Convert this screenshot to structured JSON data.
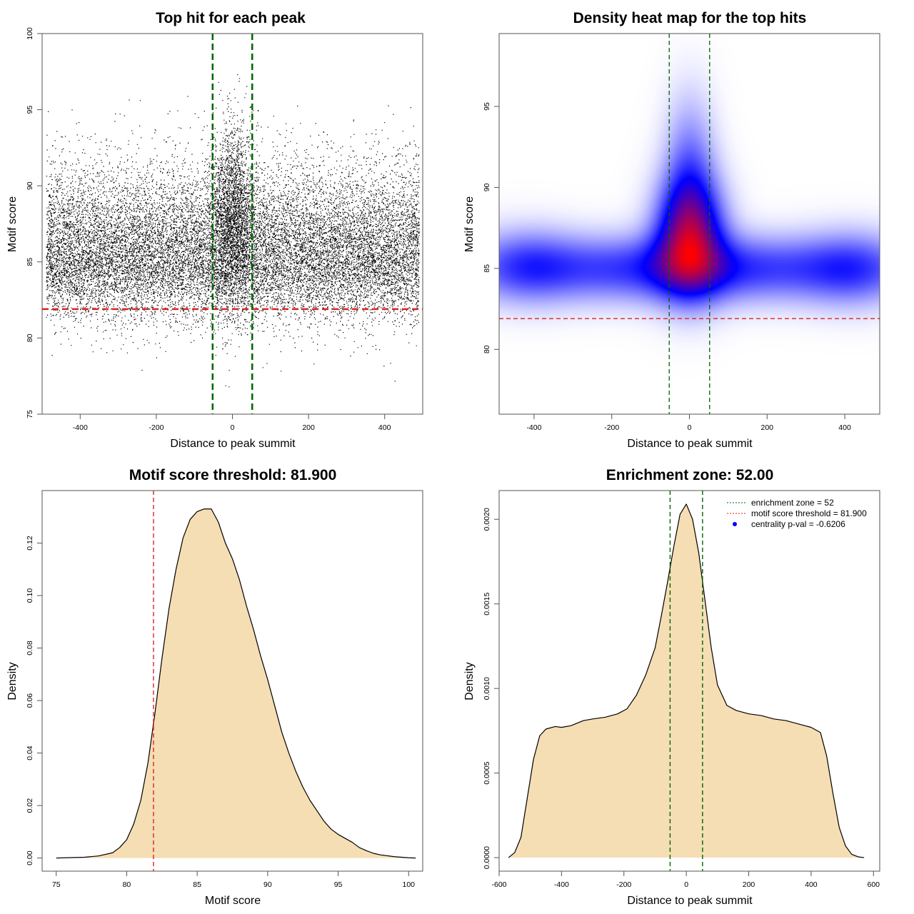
{
  "chart_data": [
    {
      "id": "scatter",
      "type": "scatter",
      "title": "Top hit for each peak",
      "xlabel": "Distance to peak summit",
      "ylabel": "Motif score",
      "xlim": [
        -500,
        500
      ],
      "ylim": [
        75,
        100
      ],
      "xticks": [
        -400,
        -200,
        0,
        200,
        400
      ],
      "yticks": [
        75,
        80,
        85,
        90,
        95,
        100
      ],
      "grid": false,
      "point_color": "#000000",
      "n_points_approx": 20000,
      "point_distribution": {
        "x_range": [
          -490,
          490
        ],
        "score_mode": 85,
        "central_score_mode": 88,
        "central_half_width": 52,
        "max_score": 99.5,
        "min_score": 75.9
      },
      "hlines": [
        {
          "y": 81.9,
          "color": "#dd2222",
          "style": "dashed"
        }
      ],
      "vlines": [
        {
          "x": -52,
          "color": "#006400",
          "style": "dashed"
        },
        {
          "x": 52,
          "color": "#006400",
          "style": "dashed"
        }
      ]
    },
    {
      "id": "heatmap",
      "type": "heatmap",
      "title": "Density heat map for the top hits",
      "xlabel": "Distance to peak summit",
      "ylabel": "Motif score",
      "xlim": [
        -490,
        490
      ],
      "ylim": [
        76,
        99.5
      ],
      "xticks": [
        -400,
        -200,
        0,
        200,
        400
      ],
      "yticks": [
        80,
        85,
        90,
        95
      ],
      "grid": false,
      "color_scale": [
        "#ffffff",
        "#0000ff",
        "#ff0000"
      ],
      "density_components": [
        {
          "x": 0,
          "y": 85.0,
          "sx": 360,
          "sy": 1.4,
          "weight": 0.6
        },
        {
          "x": -420,
          "y": 85.2,
          "sx": 90,
          "sy": 1.6,
          "weight": 0.3
        },
        {
          "x": 420,
          "y": 85.0,
          "sx": 90,
          "sy": 1.6,
          "weight": 0.3
        },
        {
          "x": 0,
          "y": 87.0,
          "sx": 60,
          "sy": 2.4,
          "weight": 1.0
        },
        {
          "x": 0,
          "y": 91.0,
          "sx": 45,
          "sy": 3.2,
          "weight": 0.35
        }
      ],
      "hlines": [
        {
          "y": 81.9,
          "color": "#dd2222",
          "style": "dashed"
        }
      ],
      "vlines": [
        {
          "x": -52,
          "color": "#006400",
          "style": "dashed"
        },
        {
          "x": 52,
          "color": "#006400",
          "style": "dashed"
        }
      ]
    },
    {
      "id": "score-density",
      "type": "area",
      "title": "Motif score threshold: 81.900",
      "xlabel": "Motif score",
      "ylabel": "Density",
      "xlim": [
        74,
        101
      ],
      "ylim": [
        -0.005,
        0.14
      ],
      "xticks": [
        75,
        80,
        85,
        90,
        95,
        100
      ],
      "yticks": [
        0.0,
        0.02,
        0.04,
        0.06,
        0.08,
        0.1,
        0.12
      ],
      "ytick_labels": [
        "0.00",
        "0.02",
        "0.04",
        "0.06",
        "0.08",
        "0.10",
        "0.12"
      ],
      "grid": false,
      "fill_color": "#f5deb3",
      "x": [
        75,
        77,
        78,
        79,
        79.5,
        80,
        80.5,
        81,
        81.5,
        82,
        82.5,
        83,
        83.5,
        84,
        84.5,
        85,
        85.5,
        86,
        86.5,
        87,
        87.5,
        88,
        88.5,
        89,
        89.5,
        90,
        90.5,
        91,
        91.5,
        92,
        92.5,
        93,
        93.5,
        94,
        94.5,
        95,
        95.5,
        96,
        96.5,
        97,
        97.5,
        98,
        99,
        100,
        100.5
      ],
      "y": [
        0.0,
        0.0003,
        0.0008,
        0.002,
        0.004,
        0.007,
        0.013,
        0.022,
        0.036,
        0.055,
        0.076,
        0.095,
        0.11,
        0.122,
        0.129,
        0.132,
        0.133,
        0.133,
        0.128,
        0.12,
        0.114,
        0.106,
        0.096,
        0.087,
        0.077,
        0.068,
        0.058,
        0.048,
        0.04,
        0.033,
        0.027,
        0.022,
        0.018,
        0.014,
        0.011,
        0.009,
        0.0075,
        0.006,
        0.004,
        0.0028,
        0.0018,
        0.0012,
        0.0005,
        0.0001,
        0.0
      ],
      "vlines": [
        {
          "x": 81.9,
          "color": "#dd2222",
          "style": "dashed"
        }
      ]
    },
    {
      "id": "distance-density",
      "type": "area",
      "title": "Enrichment zone: 52.00",
      "xlabel": "Distance to peak summit",
      "ylabel": "Density",
      "xlim": [
        -600,
        620
      ],
      "ylim": [
        -8e-05,
        0.00217
      ],
      "xticks": [
        -600,
        -400,
        -200,
        0,
        200,
        400,
        600
      ],
      "yticks": [
        0.0,
        0.0005,
        0.001,
        0.0015,
        0.002
      ],
      "ytick_labels": [
        "0.0000",
        "0.0005",
        "0.0010",
        "0.0015",
        "0.0020"
      ],
      "grid": false,
      "fill_color": "#f5deb3",
      "x": [
        -570,
        -550,
        -530,
        -510,
        -490,
        -470,
        -450,
        -420,
        -400,
        -370,
        -330,
        -300,
        -260,
        -220,
        -190,
        -160,
        -130,
        -100,
        -80,
        -60,
        -40,
        -20,
        0,
        20,
        40,
        60,
        80,
        100,
        130,
        160,
        200,
        240,
        280,
        320,
        360,
        400,
        430,
        450,
        470,
        490,
        510,
        530,
        550,
        570
      ],
      "y": [
        0.0,
        3e-05,
        0.00012,
        0.00035,
        0.00058,
        0.00072,
        0.00076,
        0.000775,
        0.00077,
        0.00078,
        0.00081,
        0.00082,
        0.00083,
        0.00085,
        0.00088,
        0.00096,
        0.00108,
        0.00124,
        0.00143,
        0.00163,
        0.00184,
        0.00203,
        0.00209,
        0.002,
        0.0018,
        0.00152,
        0.00124,
        0.00102,
        0.0009,
        0.00087,
        0.00085,
        0.00084,
        0.00082,
        0.00081,
        0.00079,
        0.00077,
        0.00074,
        0.0006,
        0.00038,
        0.00018,
        7e-05,
        2e-05,
        5e-06,
        0.0
      ],
      "vlines": [
        {
          "x": -52,
          "color": "#006400",
          "style": "dashed"
        },
        {
          "x": 52,
          "color": "#006400",
          "style": "dashed"
        }
      ],
      "legend": {
        "placement": "top-right",
        "entries": [
          {
            "label": "enrichment zone = 52",
            "color": "#006400",
            "kind": "dotted-line"
          },
          {
            "label": "motif score threshold = 81.900",
            "color": "#dd2222",
            "kind": "dotted-line"
          },
          {
            "label": "centrality p-val = -0.6206",
            "color": "#0000ff",
            "kind": "point"
          }
        ]
      }
    }
  ]
}
